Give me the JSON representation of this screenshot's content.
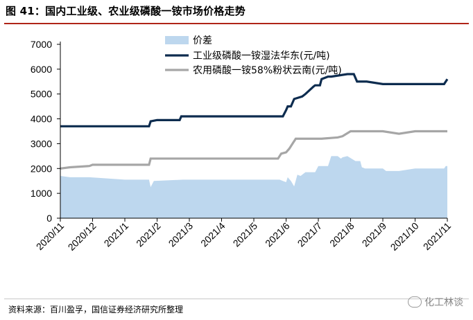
{
  "figure_title": "图 41：国内工业级、农业级磷酸一铵市场价格走势",
  "source": "资料来源：百川盈孚，国信证券经济研究所整理",
  "watermark": "化工林谈",
  "colors": {
    "spread": "#bdd7ee",
    "industrial": "#0d2c4f",
    "agricultural": "#a6a6a6",
    "title_rule": "#b02418"
  },
  "chart_data": {
    "type": "line",
    "x_ticks": [
      "2020/11",
      "2020/12",
      "2021/1",
      "2021/2",
      "2021/3",
      "2021/4",
      "2021/5",
      "2021/6",
      "2021/7",
      "2021/8",
      "2021/9",
      "2021/10",
      "2021/11"
    ],
    "x_domain": [
      0,
      12
    ],
    "ylim": [
      0,
      7000
    ],
    "y_ticks": [
      "0",
      "1000",
      "2000",
      "3000",
      "4000",
      "5000",
      "6000",
      "7000"
    ],
    "grid": false,
    "legend_position": "top-left",
    "series": [
      {
        "name": "价差",
        "kind": "area",
        "color": "#bdd7ee",
        "x": [
          0,
          0.3,
          0.9,
          2.0,
          2.75,
          2.8,
          2.9,
          3.8,
          6.8,
          6.9,
          7.0,
          7.05,
          7.15,
          7.25,
          7.35,
          7.45,
          7.6,
          7.9,
          8.0,
          8.3,
          8.4,
          8.6,
          8.7,
          8.75,
          8.9,
          9.15,
          9.3,
          9.35,
          9.45,
          10.0,
          10.1,
          10.5,
          11.0,
          11.9,
          11.95,
          12.0
        ],
        "y": [
          1700,
          1650,
          1650,
          1550,
          1550,
          1250,
          1500,
          1550,
          1550,
          1500,
          1450,
          1650,
          1500,
          1280,
          1750,
          1700,
          1850,
          1850,
          2100,
          2100,
          2500,
          2500,
          2400,
          2450,
          2500,
          2300,
          2300,
          2050,
          2000,
          2000,
          1900,
          1900,
          2000,
          2000,
          2100,
          2100
        ]
      },
      {
        "name": "工业级磷酸一铵湿法华东(元/吨)",
        "kind": "line",
        "color": "#0d2c4f",
        "x": [
          0,
          2.75,
          2.8,
          3.0,
          3.7,
          3.75,
          6.9,
          7.0,
          7.05,
          7.15,
          7.25,
          7.5,
          7.6,
          7.85,
          7.9,
          8.05,
          8.1,
          8.3,
          8.4,
          8.9,
          9.0,
          9.1,
          9.2,
          9.5,
          10.0,
          11.3,
          11.9,
          12.0
        ],
        "y": [
          3700,
          3700,
          3900,
          3950,
          3950,
          4100,
          4100,
          4350,
          4500,
          4500,
          4800,
          4900,
          5000,
          5300,
          5350,
          5350,
          5600,
          5700,
          5700,
          5800,
          5800,
          5800,
          5500,
          5500,
          5400,
          5400,
          5400,
          5600
        ]
      },
      {
        "name": "农用磷酸一铵58%粉状云南(元/吨)",
        "kind": "line",
        "color": "#a6a6a6",
        "x": [
          0,
          0.3,
          0.9,
          1.0,
          2.75,
          2.8,
          6.75,
          6.85,
          7.0,
          7.1,
          7.2,
          7.3,
          8.0,
          8.1,
          8.6,
          8.75,
          9.0,
          9.2,
          9.5,
          10.0,
          10.5,
          11.0,
          12.0
        ],
        "y": [
          2000,
          2050,
          2100,
          2150,
          2150,
          2400,
          2400,
          2600,
          2650,
          2800,
          3000,
          3200,
          3200,
          3200,
          3250,
          3300,
          3500,
          3500,
          3500,
          3500,
          3400,
          3500,
          3500
        ]
      }
    ]
  }
}
